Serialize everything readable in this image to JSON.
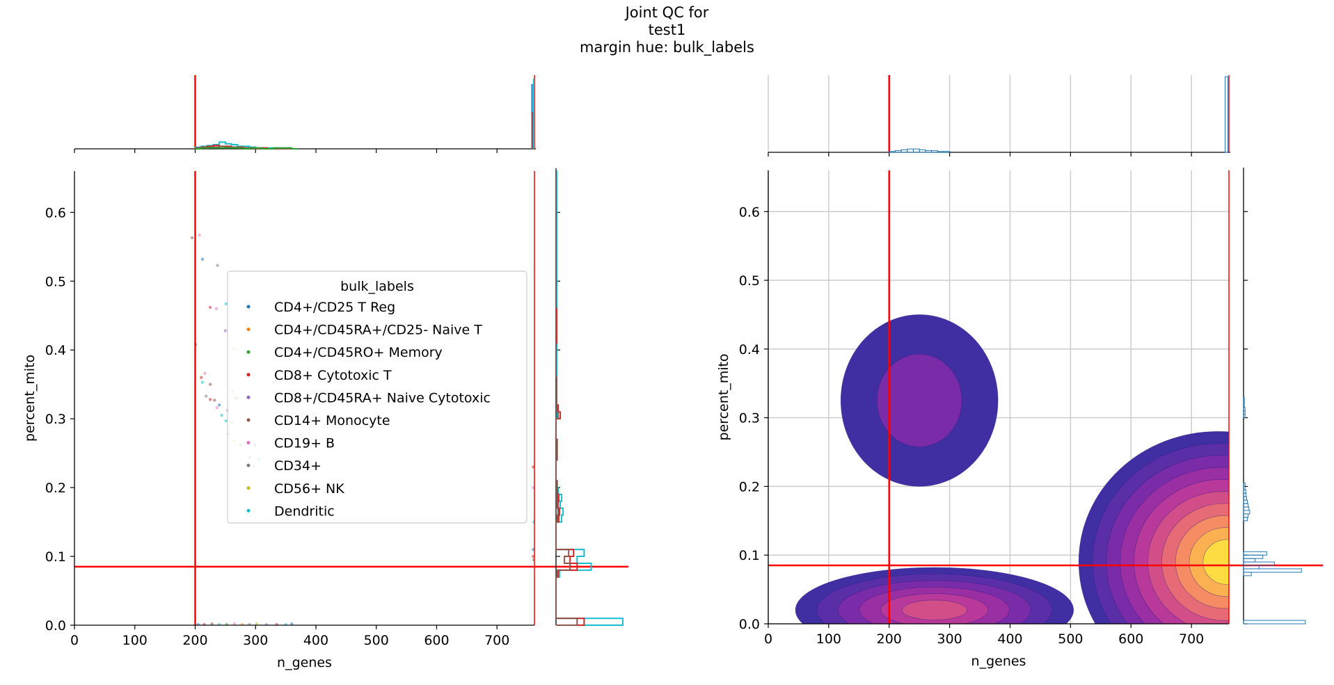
{
  "title_lines": [
    "Joint QC for",
    "test1",
    "margin hue: bulk_labels"
  ],
  "colors": {
    "threshold": "#ff0000",
    "hist_single": "#1f77b4",
    "grid": "#cccccc",
    "kde_levels": [
      "#3f2fa3",
      "#5a2ea6",
      "#7a2ca8",
      "#9a2ea3",
      "#b8399a",
      "#d24e89",
      "#e76b76",
      "#f58c64",
      "#fbb152",
      "#fddc43"
    ]
  },
  "thresholds": {
    "n_genes_min": 200,
    "n_genes_max": 762,
    "percent_mito_max": 0.085
  },
  "chart_data": [
    {
      "type": "scatter",
      "xlabel": "n_genes",
      "ylabel": "percent_mito",
      "xlim": [
        0,
        762
      ],
      "ylim": [
        0,
        0.66
      ],
      "xticks": [
        "0",
        "100",
        "200",
        "300",
        "400",
        "500",
        "600",
        "700"
      ],
      "yticks": [
        "0.0",
        "0.1",
        "0.2",
        "0.3",
        "0.4",
        "0.5",
        "0.6"
      ],
      "legend": {
        "title": "bulk_labels",
        "position": "center",
        "entries": [
          {
            "name": "CD4+/CD25 T Reg",
            "color": "#1f77b4"
          },
          {
            "name": "CD4+/CD45RA+/CD25- Naive T",
            "color": "#ff7f0e"
          },
          {
            "name": "CD4+/CD45RO+ Memory",
            "color": "#2ca02c"
          },
          {
            "name": "CD8+ Cytotoxic T",
            "color": "#d62728"
          },
          {
            "name": "CD8+/CD45RA+ Naive Cytotoxic",
            "color": "#9467bd"
          },
          {
            "name": "CD14+ Monocyte",
            "color": "#8c564b"
          },
          {
            "name": "CD19+ B",
            "color": "#e377c2"
          },
          {
            "name": "CD34+",
            "color": "#7f7f7f"
          },
          {
            "name": "CD56+ NK",
            "color": "#bcbd22"
          },
          {
            "name": "Dendritic",
            "color": "#17becf"
          }
        ]
      },
      "points": [
        {
          "x": 195,
          "y": 0.563,
          "c": 5
        },
        {
          "x": 207,
          "y": 0.567,
          "c": 6
        },
        {
          "x": 212,
          "y": 0.532,
          "c": 0
        },
        {
          "x": 237,
          "y": 0.523,
          "c": 7
        },
        {
          "x": 225,
          "y": 0.462,
          "c": 3
        },
        {
          "x": 235,
          "y": 0.46,
          "c": 6
        },
        {
          "x": 251,
          "y": 0.467,
          "c": 9
        },
        {
          "x": 250,
          "y": 0.428,
          "c": 4
        },
        {
          "x": 201,
          "y": 0.408,
          "c": 7
        },
        {
          "x": 264,
          "y": 0.401,
          "c": 8
        },
        {
          "x": 210,
          "y": 0.36,
          "c": 3
        },
        {
          "x": 216,
          "y": 0.366,
          "c": 6
        },
        {
          "x": 212,
          "y": 0.353,
          "c": 9
        },
        {
          "x": 225,
          "y": 0.35,
          "c": 5
        },
        {
          "x": 218,
          "y": 0.333,
          "c": 7
        },
        {
          "x": 225,
          "y": 0.328,
          "c": 3
        },
        {
          "x": 232,
          "y": 0.327,
          "c": 5
        },
        {
          "x": 240,
          "y": 0.32,
          "c": 0
        },
        {
          "x": 236,
          "y": 0.316,
          "c": 6
        },
        {
          "x": 244,
          "y": 0.305,
          "c": 9
        },
        {
          "x": 251,
          "y": 0.297,
          "c": 9
        },
        {
          "x": 261,
          "y": 0.295,
          "c": 9
        },
        {
          "x": 254,
          "y": 0.312,
          "c": 4
        },
        {
          "x": 262,
          "y": 0.34,
          "c": 8
        },
        {
          "x": 268,
          "y": 0.33,
          "c": 3
        },
        {
          "x": 255,
          "y": 0.278,
          "c": 6
        },
        {
          "x": 265,
          "y": 0.268,
          "c": 8
        },
        {
          "x": 275,
          "y": 0.262,
          "c": 2
        },
        {
          "x": 290,
          "y": 0.244,
          "c": 7
        },
        {
          "x": 297,
          "y": 0.231,
          "c": 6
        },
        {
          "x": 306,
          "y": 0.241,
          "c": 9
        },
        {
          "x": 299,
          "y": 0.262,
          "c": 4
        },
        {
          "x": 205,
          "y": 0.001,
          "c": 0
        },
        {
          "x": 215,
          "y": 0.001,
          "c": 3
        },
        {
          "x": 228,
          "y": 0.002,
          "c": 5
        },
        {
          "x": 240,
          "y": 0.001,
          "c": 9
        },
        {
          "x": 252,
          "y": 0.001,
          "c": 2
        },
        {
          "x": 265,
          "y": 0.002,
          "c": 6
        },
        {
          "x": 278,
          "y": 0.001,
          "c": 1
        },
        {
          "x": 290,
          "y": 0.001,
          "c": 7
        },
        {
          "x": 302,
          "y": 0.002,
          "c": 8
        },
        {
          "x": 318,
          "y": 0.001,
          "c": 4
        },
        {
          "x": 335,
          "y": 0.001,
          "c": 3
        },
        {
          "x": 350,
          "y": 0.001,
          "c": 9
        },
        {
          "x": 360,
          "y": 0.002,
          "c": 0
        },
        {
          "x": 760,
          "y": 0.1,
          "c": 3
        },
        {
          "x": 760,
          "y": 0.11,
          "c": 0
        },
        {
          "x": 761,
          "y": 0.095,
          "c": 5
        },
        {
          "x": 760,
          "y": 0.2,
          "c": 6
        },
        {
          "x": 761,
          "y": 0.15,
          "c": 9
        },
        {
          "x": 760,
          "y": 0.23,
          "c": 3
        }
      ],
      "top_hist": {
        "bins": [
          200,
          210,
          220,
          230,
          240,
          250,
          260,
          270,
          280,
          290,
          300,
          310,
          320,
          330,
          340,
          350,
          360,
          370
        ],
        "series": [
          {
            "c": 9,
            "counts": [
              2,
              3,
              4,
              5,
              8,
              6,
              5,
              3,
              3,
              2,
              1,
              1,
              1,
              1,
              1,
              1,
              0
            ]
          },
          {
            "c": 3,
            "counts": [
              1,
              2,
              3,
              4,
              3,
              3,
              2,
              2,
              1,
              1,
              1,
              1,
              0,
              0,
              0,
              0,
              0
            ]
          },
          {
            "c": 5,
            "counts": [
              1,
              1,
              2,
              2,
              3,
              2,
              2,
              1,
              1,
              1,
              0,
              0,
              0,
              0,
              0,
              0,
              0
            ]
          },
          {
            "c": 2,
            "counts": [
              0,
              1,
              1,
              1,
              1,
              1,
              1,
              1,
              0,
              1,
              1,
              0,
              0,
              1,
              1,
              1,
              0
            ]
          }
        ],
        "spike": {
          "x": 758,
          "heights": {
            "9": 95,
            "0": 88,
            "3": 50,
            "5": 30
          }
        }
      },
      "right_hist": {
        "bins_y": [
          0.0,
          0.01,
          0.07,
          0.08,
          0.09,
          0.1,
          0.11,
          0.14,
          0.15,
          0.16,
          0.17,
          0.18,
          0.19,
          0.2,
          0.21,
          0.24,
          0.27,
          0.3,
          0.31,
          0.32,
          0.36,
          0.41,
          0.46,
          0.52,
          0.57,
          0.61,
          0.66
        ],
        "series": [
          {
            "c": 9,
            "counts": [
              95,
              0,
              5,
              50,
              30,
              40,
              0,
              0,
              8,
              10,
              6,
              8,
              3,
              2,
              0,
              2,
              0,
              2,
              3,
              1,
              1,
              1,
              1,
              1,
              1,
              1
            ]
          },
          {
            "c": 3,
            "counts": [
              40,
              0,
              3,
              30,
              20,
              25,
              0,
              0,
              4,
              5,
              3,
              4,
              2,
              1,
              0,
              1,
              0,
              6,
              3,
              1,
              0,
              1,
              0,
              0,
              0,
              0
            ]
          },
          {
            "c": 5,
            "counts": [
              30,
              0,
              2,
              20,
              12,
              18,
              0,
              0,
              2,
              3,
              2,
              2,
              1,
              1,
              0,
              1,
              0,
              3,
              1,
              1,
              0,
              0,
              0,
              0,
              0,
              0
            ]
          }
        ]
      }
    },
    {
      "type": "heatmap",
      "subtype": "kde-contour",
      "xlabel": "n_genes",
      "ylabel": "percent_mito",
      "xlim": [
        0,
        762
      ],
      "ylim": [
        0,
        0.66
      ],
      "xticks": [
        "0",
        "100",
        "200",
        "300",
        "400",
        "500",
        "600",
        "700"
      ],
      "yticks": [
        "0.0",
        "0.1",
        "0.2",
        "0.3",
        "0.4",
        "0.5",
        "0.6"
      ],
      "grid": true,
      "kde_blobs": [
        {
          "cx": 275,
          "cy": 0.02,
          "rx": 230,
          "ry": 0.062,
          "levels": 6,
          "peak": 0.55
        },
        {
          "cx": 250,
          "cy": 0.325,
          "rx": 130,
          "ry": 0.125,
          "levels": 2,
          "peak": 0.2
        },
        {
          "cx": 762,
          "cy": 0.09,
          "rx": 230,
          "ry": 0.19,
          "levels": 10,
          "peak": 1.0
        }
      ],
      "top_hist": {
        "bins": [
          200,
          210,
          220,
          230,
          240,
          250,
          260,
          270,
          280,
          290,
          300
        ],
        "counts": [
          1,
          2,
          3,
          4,
          4,
          3,
          2,
          2,
          1,
          1
        ],
        "spike": {
          "x": 758,
          "height": 98
        }
      },
      "right_hist": {
        "bins_y": [
          0.0,
          0.005,
          0.07,
          0.075,
          0.08,
          0.085,
          0.09,
          0.095,
          0.1,
          0.105,
          0.15,
          0.155,
          0.16,
          0.165,
          0.17,
          0.175,
          0.18,
          0.185,
          0.19,
          0.195,
          0.2,
          0.205,
          0.3,
          0.305,
          0.31,
          0.315,
          0.32,
          0.325,
          0.33
        ],
        "counts": [
          80,
          0,
          10,
          75,
          20,
          40,
          15,
          25,
          30,
          0,
          5,
          6,
          8,
          7,
          6,
          5,
          4,
          3,
          3,
          2,
          2,
          0,
          2,
          2,
          2,
          1,
          1,
          1
        ]
      }
    }
  ]
}
